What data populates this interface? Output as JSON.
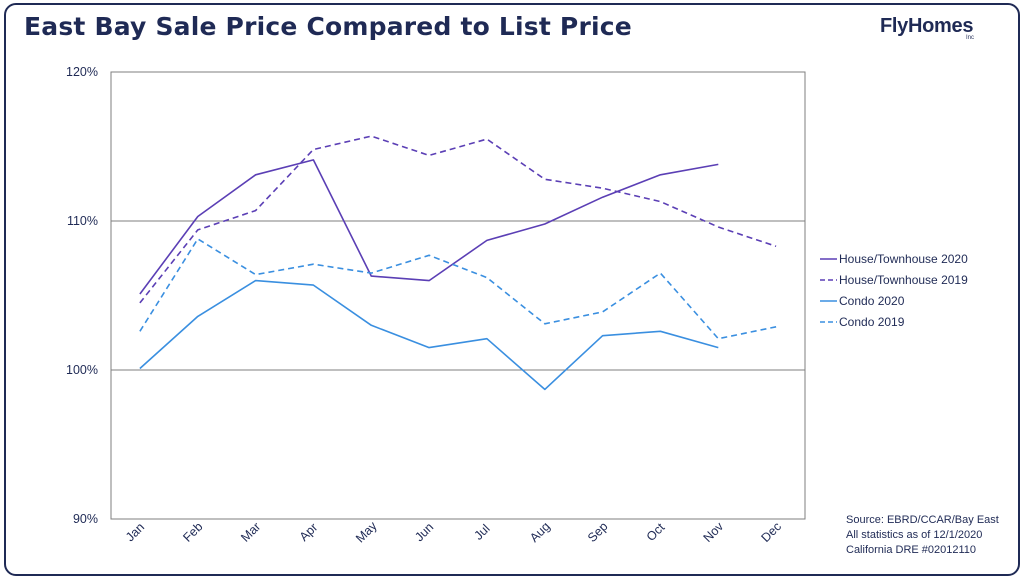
{
  "title": "East Bay Sale Price Compared to List Price",
  "logo": {
    "text": "FlyHomes",
    "suffix": "Inc"
  },
  "source": {
    "line1": "Source: EBRD/CCAR/Bay East",
    "line2": "All statistics as of 12/1/2020",
    "line3": "California DRE #02012110"
  },
  "colors": {
    "house": "#5b3fb5",
    "condo": "#3a8fe0",
    "axis": "#7f7f7f",
    "text": "#1f2a55"
  },
  "chart_data": {
    "type": "line",
    "title": "East Bay Sale Price Compared to List Price",
    "xlabel": "",
    "ylabel": "",
    "categories": [
      "Jan",
      "Feb",
      "Mar",
      "Apr",
      "May",
      "Jun",
      "Jul",
      "Aug",
      "Sep",
      "Oct",
      "Nov",
      "Dec"
    ],
    "ylim": [
      90,
      120
    ],
    "yticks": [
      90,
      100,
      110,
      120
    ],
    "ytick_labels": [
      "90%",
      "100%",
      "110%",
      "120%"
    ],
    "grid": "horizontal at 100% and 110%",
    "legend_position": "right",
    "series": [
      {
        "name": "House/Townhouse 2020",
        "color": "#5b3fb5",
        "dash": "solid",
        "values": [
          105.1,
          110.3,
          113.1,
          114.1,
          106.3,
          106.0,
          108.7,
          109.8,
          111.6,
          113.1,
          113.8,
          null
        ]
      },
      {
        "name": "House/Townhouse 2019",
        "color": "#5b3fb5",
        "dash": "dashed",
        "values": [
          104.5,
          109.4,
          110.7,
          114.8,
          115.7,
          114.4,
          115.5,
          112.8,
          112.2,
          111.3,
          109.6,
          108.3
        ]
      },
      {
        "name": "Condo 2020",
        "color": "#3a8fe0",
        "dash": "solid",
        "values": [
          100.1,
          103.6,
          106.0,
          105.7,
          103.0,
          101.5,
          102.1,
          98.7,
          102.3,
          102.6,
          101.5,
          null
        ]
      },
      {
        "name": "Condo 2019",
        "color": "#3a8fe0",
        "dash": "dashed",
        "values": [
          102.6,
          108.8,
          106.4,
          107.1,
          106.5,
          107.7,
          106.2,
          103.1,
          103.9,
          106.5,
          102.1,
          102.9
        ]
      }
    ]
  }
}
